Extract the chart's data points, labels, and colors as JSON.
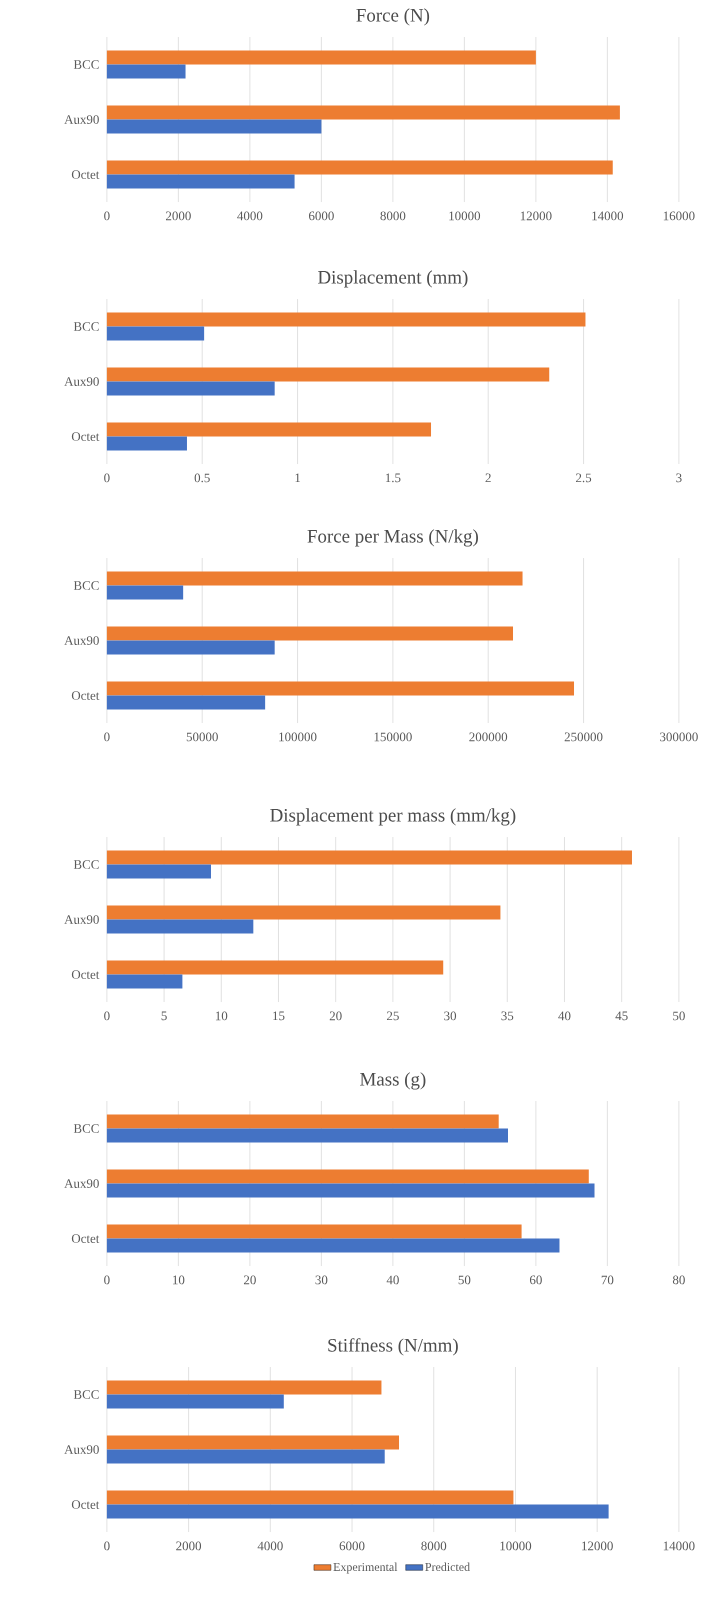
{
  "chart_data": [
    {
      "type": "bar",
      "orientation": "horizontal",
      "title": "Force (N)",
      "categories": [
        "BCC",
        "Aux90",
        "Octet"
      ],
      "xlim": [
        0,
        16000
      ],
      "xticks": [
        0,
        2000,
        4000,
        6000,
        8000,
        10000,
        12000,
        14000,
        16000
      ],
      "grid": "x",
      "legend": false,
      "series": [
        {
          "color": "#ed7d31",
          "values": [
            12000,
            14350,
            14150
          ]
        },
        {
          "color": "#4472c4",
          "values": [
            2200,
            6000,
            5250
          ]
        }
      ]
    },
    {
      "type": "bar",
      "orientation": "horizontal",
      "title": "Displacement (mm)",
      "categories": [
        "BCC",
        "Aux90",
        "Octet"
      ],
      "xlim": [
        0,
        3
      ],
      "xticks": [
        0,
        0.5,
        1,
        1.5,
        2,
        2.5,
        3
      ],
      "grid": "x",
      "legend": false,
      "series": [
        {
          "color": "#ed7d31",
          "values": [
            2.51,
            2.32,
            1.7
          ]
        },
        {
          "color": "#4472c4",
          "values": [
            0.51,
            0.88,
            0.42
          ]
        }
      ]
    },
    {
      "type": "bar",
      "orientation": "horizontal",
      "title": "Force per Mass (N/kg)",
      "categories": [
        "BCC",
        "Aux90",
        "Octet"
      ],
      "xlim": [
        0,
        300000
      ],
      "xticks": [
        0,
        50000,
        100000,
        150000,
        200000,
        250000,
        300000
      ],
      "grid": "x",
      "legend": false,
      "series": [
        {
          "color": "#ed7d31",
          "values": [
            218000,
            213000,
            245000
          ]
        },
        {
          "color": "#4472c4",
          "values": [
            40000,
            88000,
            83000
          ]
        }
      ]
    },
    {
      "type": "bar",
      "orientation": "horizontal",
      "title": "Displacement per mass (mm/kg)",
      "categories": [
        "BCC",
        "Aux90",
        "Octet"
      ],
      "xlim": [
        0,
        50
      ],
      "xticks": [
        0,
        5,
        10,
        15,
        20,
        25,
        30,
        35,
        40,
        45,
        50
      ],
      "grid": "x",
      "legend": false,
      "series": [
        {
          "color": "#ed7d31",
          "values": [
            45.9,
            34.4,
            29.4
          ]
        },
        {
          "color": "#4472c4",
          "values": [
            9.1,
            12.8,
            6.6
          ]
        }
      ]
    },
    {
      "type": "bar",
      "orientation": "horizontal",
      "title": "Mass (g)",
      "categories": [
        "BCC",
        "Aux90",
        "Octet"
      ],
      "xlim": [
        0,
        80
      ],
      "xticks": [
        0,
        10,
        20,
        30,
        40,
        50,
        60,
        70,
        80
      ],
      "grid": "x",
      "legend": false,
      "series": [
        {
          "color": "#ed7d31",
          "values": [
            54.8,
            67.4,
            58.0
          ]
        },
        {
          "color": "#4472c4",
          "values": [
            56.1,
            68.2,
            63.3
          ]
        }
      ]
    },
    {
      "type": "bar",
      "orientation": "horizontal",
      "title": "Stiffness (N/mm)",
      "categories": [
        "BCC",
        "Aux90",
        "Octet"
      ],
      "xlim": [
        0,
        14000
      ],
      "xticks": [
        0,
        2000,
        4000,
        6000,
        8000,
        10000,
        12000,
        14000
      ],
      "grid": "x",
      "legend": "bottom",
      "series": [
        {
          "name": "Experimental",
          "color": "#ed7d31",
          "values": [
            6720,
            7150,
            9950
          ]
        },
        {
          "name": "Predicted",
          "color": "#4472c4",
          "values": [
            4330,
            6800,
            12280
          ]
        }
      ]
    }
  ]
}
